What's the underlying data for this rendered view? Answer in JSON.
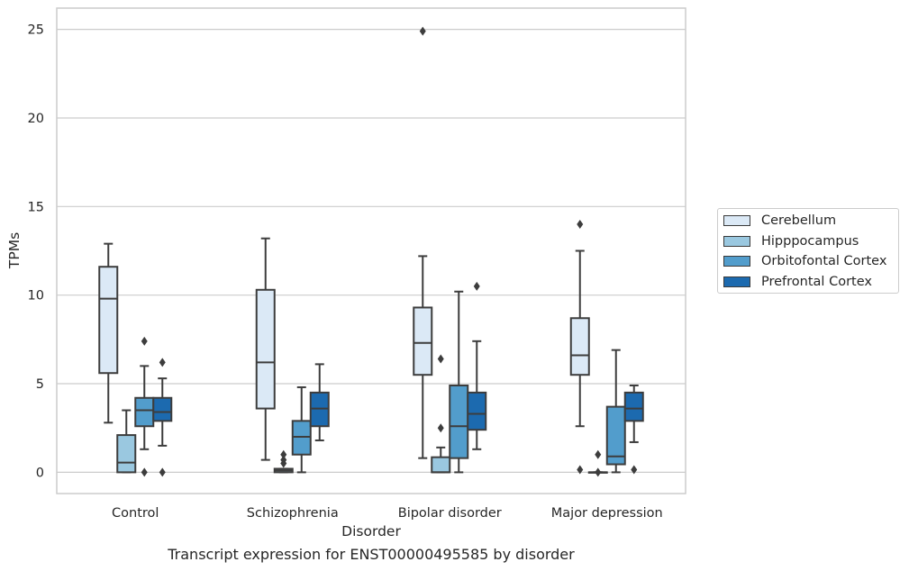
{
  "chart_data": {
    "type": "box",
    "title": "",
    "xlabel": "Disorder",
    "ylabel": "TPMs",
    "caption": "Transcript expression for ENST00000495585 by disorder",
    "categories": [
      "Control",
      "Schizophrenia",
      "Bipolar disorder",
      "Major depression"
    ],
    "yticks": [
      0,
      5,
      10,
      15,
      20,
      25
    ],
    "ylim": [
      -1.2,
      26.2
    ],
    "grid": "horizontal",
    "legend_position": "center-right",
    "series": [
      {
        "name": "Cerebellum",
        "color": "#dbe9f6",
        "boxes": [
          {
            "whisker_low": 2.8,
            "q1": 5.6,
            "median": 9.8,
            "q3": 11.6,
            "whisker_high": 12.9,
            "outliers": []
          },
          {
            "whisker_low": 0.7,
            "q1": 3.6,
            "median": 6.2,
            "q3": 10.3,
            "whisker_high": 13.2,
            "outliers": []
          },
          {
            "whisker_low": 0.8,
            "q1": 5.5,
            "median": 7.3,
            "q3": 9.3,
            "whisker_high": 12.2,
            "outliers": [
              24.9
            ]
          },
          {
            "whisker_low": 2.6,
            "q1": 5.5,
            "median": 6.6,
            "q3": 8.7,
            "whisker_high": 12.5,
            "outliers": [
              14.0,
              0.15
            ]
          }
        ]
      },
      {
        "name": "Hipppocampus",
        "color": "#9ac8e0",
        "boxes": [
          {
            "whisker_low": 0.0,
            "q1": 0.0,
            "median": 0.55,
            "q3": 2.1,
            "whisker_high": 3.5,
            "outliers": []
          },
          {
            "whisker_low": 0.0,
            "q1": 0.0,
            "median": 0.1,
            "q3": 0.2,
            "whisker_high": 0.2,
            "outliers": [
              1.0,
              0.7,
              0.5
            ]
          },
          {
            "whisker_low": 0.0,
            "q1": 0.0,
            "median": 0.0,
            "q3": 0.85,
            "whisker_high": 1.4,
            "outliers": [
              6.4,
              2.5
            ]
          },
          {
            "whisker_low": 0.0,
            "q1": 0.0,
            "median": 0.0,
            "q3": 0.0,
            "whisker_high": 0.0,
            "outliers": [
              1.0,
              0.0
            ]
          }
        ]
      },
      {
        "name": "Orbitofontal Cortex",
        "color": "#529dcc",
        "boxes": [
          {
            "whisker_low": 1.3,
            "q1": 2.6,
            "median": 3.5,
            "q3": 4.2,
            "whisker_high": 6.0,
            "outliers": [
              7.4,
              0.0
            ]
          },
          {
            "whisker_low": 0.0,
            "q1": 1.0,
            "median": 2.0,
            "q3": 2.9,
            "whisker_high": 4.8,
            "outliers": []
          },
          {
            "whisker_low": 0.0,
            "q1": 0.8,
            "median": 2.6,
            "q3": 4.9,
            "whisker_high": 10.2,
            "outliers": []
          },
          {
            "whisker_low": 0.0,
            "q1": 0.45,
            "median": 0.9,
            "q3": 3.7,
            "whisker_high": 6.9,
            "outliers": []
          }
        ]
      },
      {
        "name": "Prefrontal Cortex",
        "color": "#1c6aaf",
        "boxes": [
          {
            "whisker_low": 1.5,
            "q1": 2.9,
            "median": 3.4,
            "q3": 4.2,
            "whisker_high": 5.3,
            "outliers": [
              6.2,
              0.0
            ]
          },
          {
            "whisker_low": 1.8,
            "q1": 2.6,
            "median": 3.6,
            "q3": 4.5,
            "whisker_high": 6.1,
            "outliers": []
          },
          {
            "whisker_low": 1.3,
            "q1": 2.4,
            "median": 3.3,
            "q3": 4.5,
            "whisker_high": 7.4,
            "outliers": [
              10.5
            ]
          },
          {
            "whisker_low": 1.7,
            "q1": 2.9,
            "median": 3.6,
            "q3": 4.5,
            "whisker_high": 4.9,
            "outliers": [
              0.15
            ]
          }
        ]
      }
    ]
  }
}
